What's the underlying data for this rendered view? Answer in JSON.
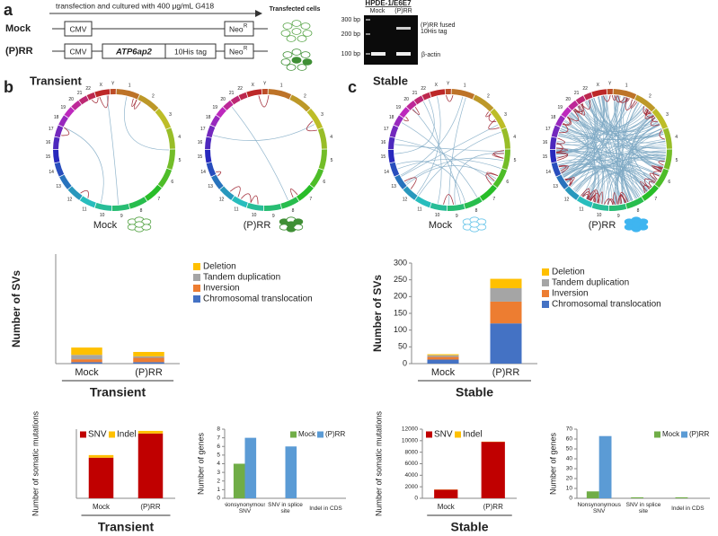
{
  "panel_a": {
    "label": "a",
    "arrow_text": "transfection and cultured with 400 μg/mL G418",
    "mock": "Mock",
    "prr": "(P)RR",
    "cmv": "CMV",
    "gene": "ATP6ap2",
    "tag": "10His tag",
    "neo": "Neo",
    "neo_sup": "R",
    "transfected": "Transfected cells",
    "gel": {
      "title": "HPDE-1/E6E7",
      "lanes": [
        "Mock",
        "(P)RR"
      ],
      "markers": [
        "300 bp",
        "200 bp",
        "100 bp"
      ],
      "band_labels": [
        "(P)RR fused 10His tag",
        "β-actin"
      ]
    }
  },
  "panel_b": {
    "label": "b",
    "title": "Transient"
  },
  "panel_c": {
    "label": "c",
    "title": "Stable"
  },
  "circos": {
    "chromosomes": [
      "1",
      "2",
      "3",
      "4",
      "5",
      "6",
      "7",
      "8",
      "9",
      "10",
      "11",
      "12",
      "13",
      "14",
      "15",
      "16",
      "17",
      "18",
      "19",
      "20",
      "21",
      "22",
      "X",
      "Y"
    ],
    "captions": [
      "Mock",
      "(P)RR"
    ]
  },
  "chart_data": [
    {
      "type": "bar",
      "stacked": true,
      "y_label": "Number of SVs",
      "x_label": "Transient",
      "categories": [
        "Mock",
        "(P)RR"
      ],
      "series": [
        {
          "name": "Chromosomal translocation",
          "color": "#4472c4",
          "values": [
            1,
            1
          ]
        },
        {
          "name": "Inversion",
          "color": "#ed7d31",
          "values": [
            2,
            3
          ]
        },
        {
          "name": "Tandem duplication",
          "color": "#a5a5a5",
          "values": [
            3,
            1
          ]
        },
        {
          "name": "Deletion",
          "color": "#ffc000",
          "values": [
            5,
            3
          ]
        }
      ],
      "ylim": [
        0,
        75
      ],
      "legend": "right"
    },
    {
      "type": "bar",
      "stacked": true,
      "y_label": "Number of SVs",
      "x_label": "Stable",
      "categories": [
        "Mock",
        "(P)RR"
      ],
      "series": [
        {
          "name": "Chromosomal translocation",
          "color": "#4472c4",
          "values": [
            12,
            120
          ]
        },
        {
          "name": "Inversion",
          "color": "#ed7d31",
          "values": [
            8,
            65
          ]
        },
        {
          "name": "Tandem duplication",
          "color": "#a5a5a5",
          "values": [
            5,
            40
          ]
        },
        {
          "name": "Deletion",
          "color": "#ffc000",
          "values": [
            3,
            28
          ]
        }
      ],
      "ylim": [
        0,
        300
      ],
      "yticks": [
        0,
        50,
        100,
        150,
        200,
        250,
        300
      ],
      "legend": "right"
    },
    {
      "type": "bar",
      "stacked": true,
      "y_label": "Number of somatic mutations",
      "x_label": "Transient",
      "categories": [
        "Mock",
        "(P)RR"
      ],
      "series": [
        {
          "name": "SNV",
          "color": "#c00000",
          "values": [
            235,
            375
          ]
        },
        {
          "name": "Indel",
          "color": "#ffc000",
          "values": [
            15,
            15
          ]
        }
      ],
      "ylim": [
        0,
        400
      ],
      "legend": "top-left"
    },
    {
      "type": "bar",
      "stacked": false,
      "y_label": "Number of genes",
      "categories": [
        "Nonsynonymous SNV",
        "SNV in splice site",
        "Indel in CDS"
      ],
      "series": [
        {
          "name": "Mock",
          "color": "#70ad47",
          "values": [
            4,
            0,
            0
          ]
        },
        {
          "name": "(P)RR",
          "color": "#5b9bd5",
          "values": [
            7,
            6,
            0
          ]
        }
      ],
      "ylim": [
        0,
        8
      ],
      "yticks": [
        0,
        1,
        2,
        3,
        4,
        5,
        6,
        7,
        8
      ],
      "legend": "top-right"
    },
    {
      "type": "bar",
      "stacked": true,
      "y_label": "Number of somatic mutations",
      "x_label": "Stable",
      "categories": [
        "Mock",
        "(P)RR"
      ],
      "series": [
        {
          "name": "SNV",
          "color": "#c00000",
          "values": [
            1500,
            9800
          ]
        },
        {
          "name": "Indel",
          "color": "#ffc000",
          "values": [
            30,
            40
          ]
        }
      ],
      "ylim": [
        0,
        12000
      ],
      "yticks": [
        0,
        2000,
        4000,
        6000,
        8000,
        10000,
        12000
      ],
      "legend": "top-left"
    },
    {
      "type": "bar",
      "stacked": false,
      "y_label": "Number of genes",
      "categories": [
        "Nonsynonymous SNV",
        "SNV in splice site",
        "Indel in CDS"
      ],
      "series": [
        {
          "name": "Mock",
          "color": "#70ad47",
          "values": [
            7,
            1,
            1
          ]
        },
        {
          "name": "(P)RR",
          "color": "#5b9bd5",
          "values": [
            63,
            0,
            0
          ]
        }
      ],
      "ylim": [
        0,
        70
      ],
      "yticks": [
        0,
        10,
        20,
        30,
        40,
        50,
        60,
        70
      ],
      "legend": "top-right"
    }
  ]
}
